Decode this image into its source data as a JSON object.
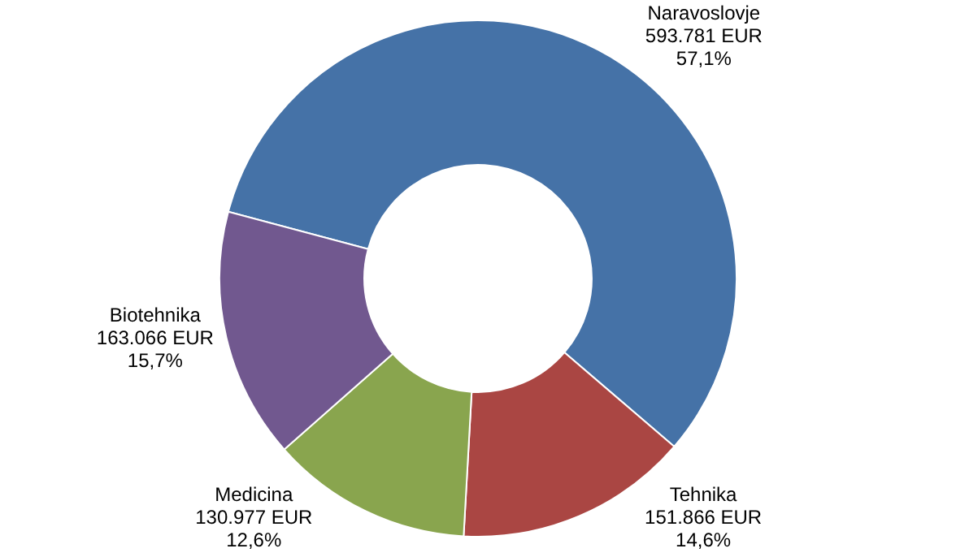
{
  "chart_data": {
    "type": "donut",
    "categories": [
      "Naravoslovje",
      "Tehnika",
      "Medicina",
      "Biotehnika"
    ],
    "values": [
      593781,
      151866,
      130977,
      163066
    ],
    "colors": [
      "#4572a7",
      "#aa4643",
      "#89a54e",
      "#71588f"
    ],
    "value_labels": [
      "593.781 EUR\n57,1%",
      "151.866 EUR\n14,6%",
      "130.977 EUR\n12,6%",
      "163.066 EUR\n15,7%"
    ]
  }
}
